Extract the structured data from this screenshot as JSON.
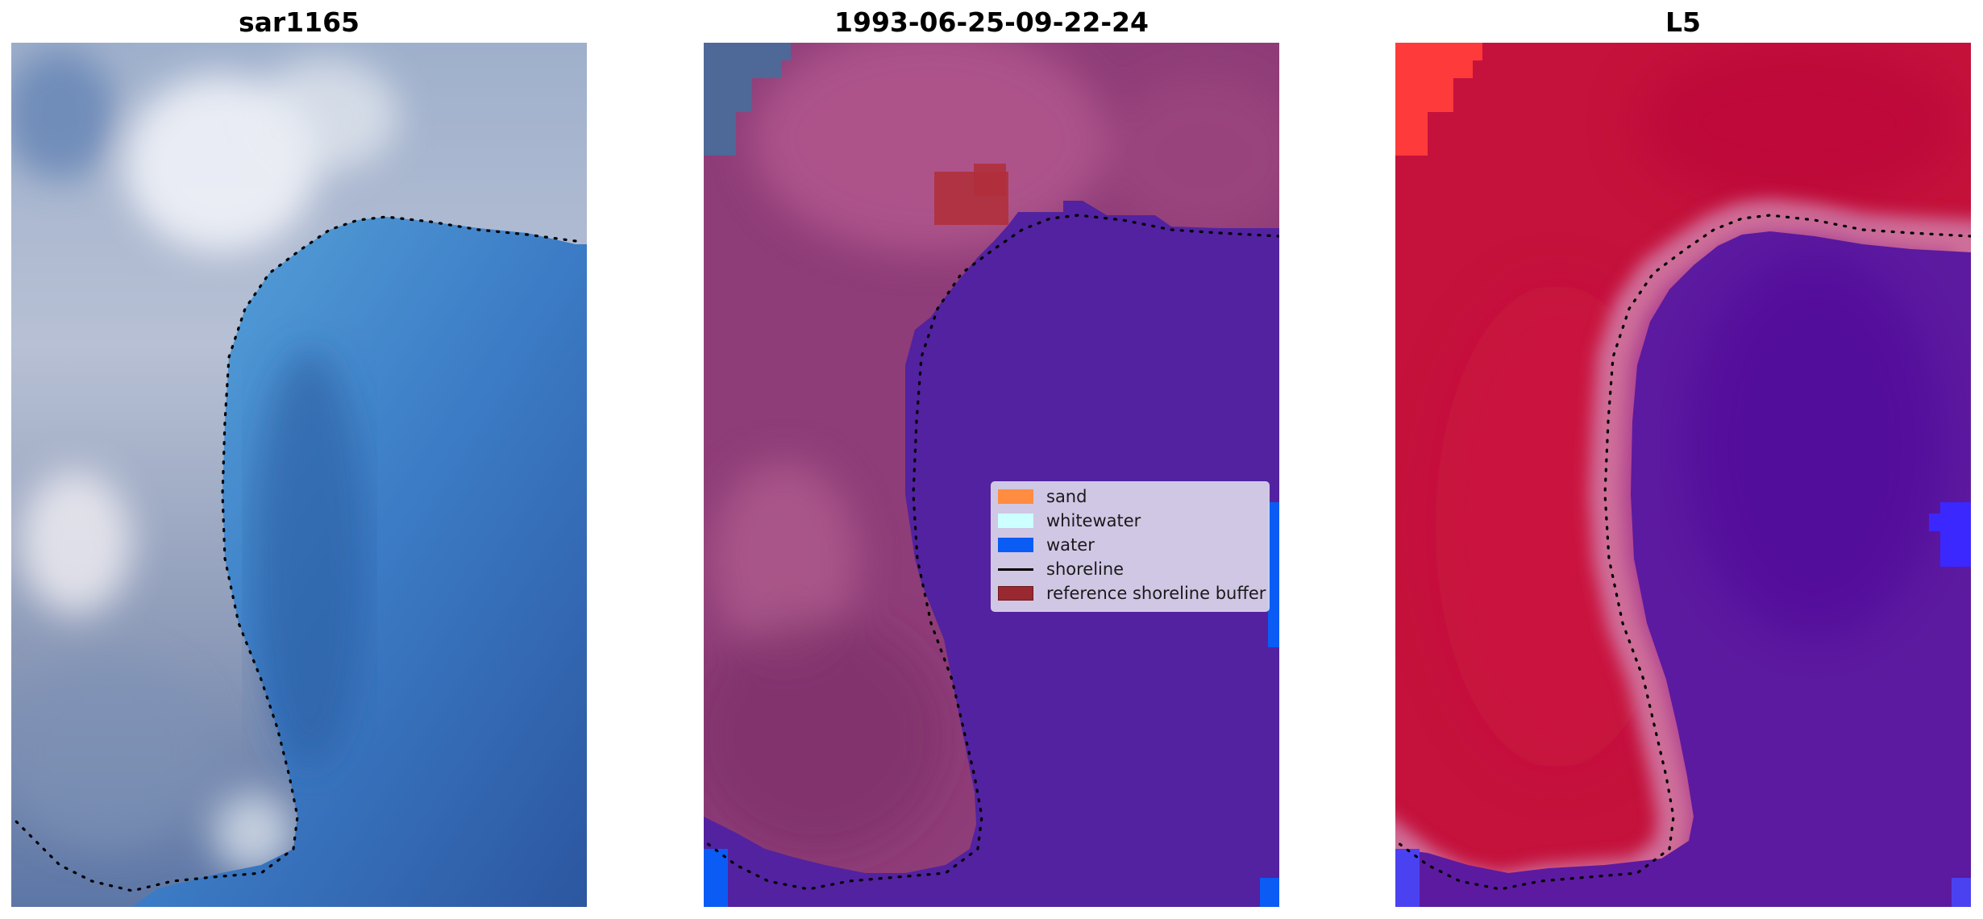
{
  "panels": [
    {
      "title": "sar1165",
      "kind": "rgb"
    },
    {
      "title": "1993-06-25-09-22-24",
      "kind": "classified"
    },
    {
      "title": "L5",
      "kind": "index"
    }
  ],
  "legend": {
    "items": [
      {
        "label": "sand",
        "color": "#ff8c40",
        "type": "patch"
      },
      {
        "label": "whitewater",
        "color": "#ccffff",
        "type": "patch"
      },
      {
        "label": "water",
        "color": "#0a5cf5",
        "type": "patch"
      },
      {
        "label": "shoreline",
        "color": "#000000",
        "type": "line"
      },
      {
        "label": "reference shoreline buffer",
        "color": "#9a2830",
        "type": "patch"
      }
    ]
  },
  "colors": {
    "land_rgb": "#b8c2d8",
    "sea_rgb": "#3a7ccc",
    "land_classified": "#9a4c80",
    "water_classified": "#5222a0",
    "buffer": "#b0303c",
    "land_index": "#c8123c",
    "water_index": "#5c1aa0"
  }
}
